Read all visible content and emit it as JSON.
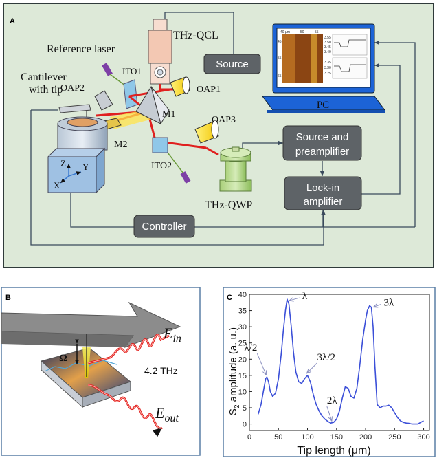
{
  "panel_a": {
    "letter": "A",
    "labels": {
      "qcl": "THz-QCL",
      "reference_laser": "Reference laser",
      "ito1": "ITO1",
      "ito2": "ITO2",
      "oap1": "OAP1",
      "oap2": "OAP2",
      "oap3": "OAP3",
      "m1": "M1",
      "m2": "M2",
      "cantilever_line1": "Cantilever",
      "cantilever_line2": "with tip",
      "qwp": "THz-QWP",
      "pc": "PC",
      "axis_x": "X",
      "axis_y": "Y",
      "axis_z": "Z"
    },
    "boxes": {
      "source": "Source",
      "source_pre_line1": "Source and",
      "source_pre_line2": "preamplifier",
      "lockin_line1": "Lock-in",
      "lockin_line2": "amplifier",
      "controller": "Controller"
    },
    "screen_ticks": {
      "top": [
        "40 μm",
        "50",
        "55"
      ],
      "left": [
        "45",
        "55",
        "65"
      ],
      "right_top": [
        "3.55",
        "3.50",
        "3.45",
        "3.40"
      ],
      "right_mid": [
        "3.35",
        "3.30",
        "3.25"
      ]
    }
  },
  "panel_b": {
    "letter": "B",
    "e_in_base": "E",
    "e_in_sub": "in",
    "e_out_base": "E",
    "e_out_sub": "out",
    "omega": "Ω",
    "freq": "4.2 THz"
  },
  "panel_c": {
    "letter": "C",
    "annotations": [
      {
        "text": "λ/2",
        "x": 30,
        "y": 14.5
      },
      {
        "text": "λ",
        "x": 65,
        "y": 38.5
      },
      {
        "text": "3λ/2",
        "x": 100,
        "y": 15
      },
      {
        "text": "2λ",
        "x": 143,
        "y": 0.3
      },
      {
        "text": "3λ",
        "x": 210,
        "y": 36.5
      }
    ]
  },
  "chart_data": {
    "type": "line",
    "xlabel": "Tip length (μm)",
    "ylabel_base": "S",
    "ylabel_sub": "2",
    "ylabel_rest": " amplitude (a. u.)",
    "xlim": [
      0,
      310
    ],
    "ylim": [
      -2,
      40
    ],
    "xticks": [
      0,
      50,
      100,
      150,
      200,
      250,
      300
    ],
    "yticks": [
      0,
      5,
      10,
      15,
      20,
      25,
      30,
      35,
      40
    ],
    "color": "#3b4fd8",
    "series": [
      {
        "x": [
          15,
          20,
          25,
          28,
          30,
          33,
          36,
          40,
          45,
          50,
          55,
          58,
          62,
          65,
          68,
          72,
          76,
          80,
          85,
          90,
          95,
          100,
          105,
          110,
          115,
          120,
          125,
          130,
          135,
          140,
          145,
          150,
          155,
          160,
          165,
          170,
          175,
          180,
          185,
          190,
          195,
          200,
          203,
          207,
          210,
          213,
          216,
          220,
          225,
          230,
          235,
          240,
          245,
          250,
          255,
          260,
          265,
          270,
          275,
          280,
          285,
          290,
          295,
          300
        ],
        "y": [
          3,
          6,
          11,
          14,
          14.5,
          13,
          10,
          8.5,
          9.5,
          14,
          22,
          28,
          35,
          38.5,
          37,
          30,
          22,
          16,
          13,
          12.5,
          14,
          15,
          13,
          9,
          6,
          4,
          2.5,
          1.5,
          0.8,
          0.3,
          0.5,
          1.5,
          4,
          8,
          11.5,
          11,
          8.5,
          8,
          11,
          18,
          26,
          32,
          35,
          36.5,
          36,
          30,
          18,
          6,
          5,
          5.5,
          5.5,
          5.8,
          5,
          3.5,
          2,
          1,
          0.5,
          0.3,
          0.2,
          0,
          0,
          0,
          0.5,
          1
        ]
      }
    ]
  }
}
